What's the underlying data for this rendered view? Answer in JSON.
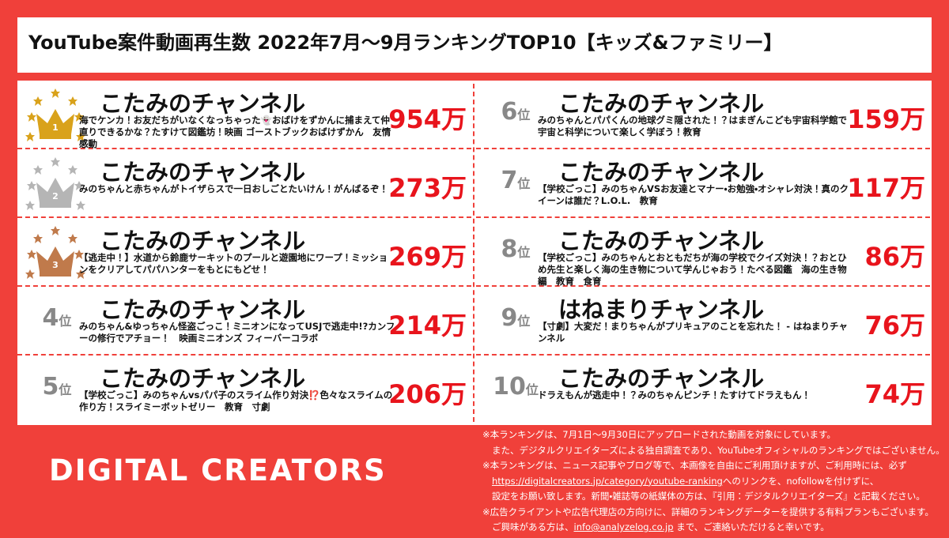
{
  "header": {
    "title": "YouTube案件動画再生数 2022年7月～9月ランキングTOP10【キッズ&ファミリー】"
  },
  "rankings": [
    {
      "rank": "1",
      "channel": "こたみのチャンネル",
      "video_title": "海でケンカ！お友だちがいなくなっちゃった👻おばけをずかんに捕まえて仲直りできるかな？たすけて図鑑坊！映画 ゴーストブックおばけずかん　友情　感動",
      "views": "954万"
    },
    {
      "rank": "2",
      "channel": "こたみのチャンネル",
      "video_title": "みのちゃんと赤ちゃんがトイザらスで一日おしごとたいけん！がんばるぞ！",
      "views": "273万"
    },
    {
      "rank": "3",
      "channel": "こたみのチャンネル",
      "video_title": "【逃走中！】水道から鈴鹿サーキットのプールと遊園地にワープ！ミッションをクリアしてパパハンターをもとにもどせ！",
      "views": "269万"
    },
    {
      "rank": "4",
      "rank_unit": "位",
      "channel": "こたみのチャンネル",
      "video_title": "みのちゃん&ゆっちゃん怪盗ごっこ！ミニオンになってUSJで逃走中!?カンフーの修行でアチョー！　映画ミニオンズ フィーバーコラボ",
      "views": "214万"
    },
    {
      "rank": "5",
      "rank_unit": "位",
      "channel": "こたみのチャンネル",
      "video_title": "【学校ごっこ】みのちゃんvsパパ子のスライム作り対決⁉️色々なスライムの作り方！スライミーボットゼリー　教育　寸劇",
      "views": "206万"
    },
    {
      "rank": "6",
      "rank_unit": "位",
      "channel": "こたみのチャンネル",
      "video_title": "みのちゃんとパパくんの地球グミ隠された！？はまぎんこども宇宙科学館で宇宙と科学について楽しく学ぼう！教育",
      "views": "159万"
    },
    {
      "rank": "7",
      "rank_unit": "位",
      "channel": "こたみのチャンネル",
      "video_title": "【学校ごっこ】みのちゃんVSお友達とマナー・お勉強・オシャレ対決！真のクイーンは誰だ？L.O.L.　教育",
      "views": "117万"
    },
    {
      "rank": "8",
      "rank_unit": "位",
      "channel": "こたみのチャンネル",
      "video_title": "【学校ごっこ】みのちゃんとおともだちが海の学校でクイズ対決！？おとひめ先生と楽しく海の生き物について学んじゃおう！たべる図鑑　海の生き物編　教育　食育",
      "views": "86万"
    },
    {
      "rank": "9",
      "rank_unit": "位",
      "channel": "はねまりチャンネル",
      "video_title": "【寸劇】大変だ！まりちゃんがプリキュアのことを忘れた！ - はねまりチャンネル",
      "views": "76万"
    },
    {
      "rank": "10",
      "rank_unit": "位",
      "channel": "こたみのチャンネル",
      "video_title": "ドラえもんが逃走中！？みのちゃんピンチ！たすけてドラえもん！",
      "views": "74万"
    }
  ],
  "footer": {
    "logo": "DIGITAL CREATORS",
    "notes": [
      {
        "text": "※本ランキングは、7月1日～9月30日にアップロードされた動画を対象にしています。"
      },
      {
        "text": "また、デジタルクリエイターズによる独自調査であり、YouTubeオフィシャルのランキングではございません。"
      },
      {
        "text": "※本ランキングは、ニュース記事やブログ等で、本画像を自由にご利用頂けますが、ご利用時には、必ず"
      },
      {
        "link": "https://digitalcreators.jp/category/youtube-ranking",
        "text": "へのリンクを、nofollowを付けずに、"
      },
      {
        "text": "設定をお願い致します。新聞・雑誌等の紙媒体の方は、『引用：デジタルクリエイターズ』と記載ください。"
      },
      {
        "text": "※広告クライアントや広告代理店の方向けに、詳細のランキングデーターを提供する有料プランもございます。"
      },
      {
        "prefix": "ご興味がある方は、",
        "link": "info@analyzelog.co.jp",
        "text": " まで、ご連絡いただけると幸いです。"
      }
    ]
  }
}
